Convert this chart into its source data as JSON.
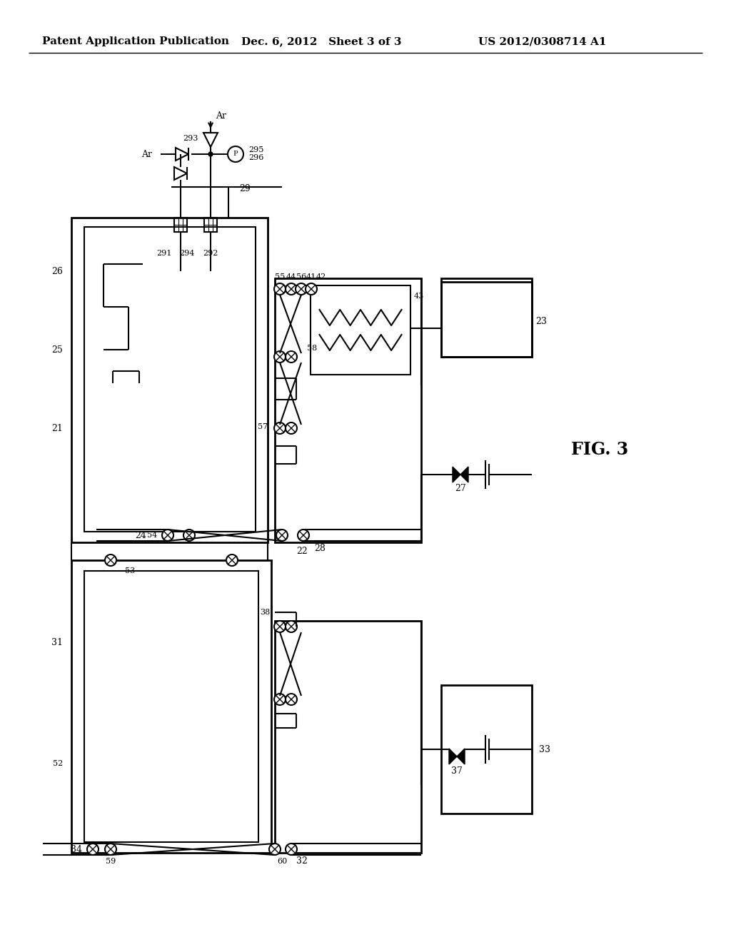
{
  "header_left": "Patent Application Publication",
  "header_mid": "Dec. 6, 2012   Sheet 3 of 3",
  "header_right": "US 2012/0308714 A1",
  "fig_label": "FIG. 3",
  "bg_color": "#ffffff"
}
